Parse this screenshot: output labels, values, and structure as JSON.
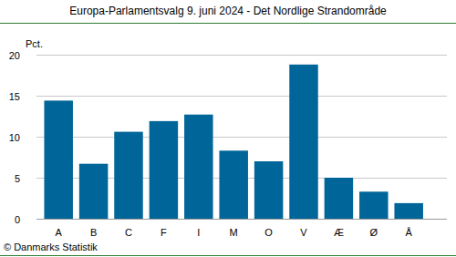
{
  "chart_data": {
    "type": "bar",
    "title": "Europa-Parlamentsvalg 9. juni 2024 - Det Nordlige Strandområde",
    "y_label": "Pct.",
    "source": "© Danmarks Statistik",
    "categories": [
      "A",
      "B",
      "C",
      "F",
      "I",
      "M",
      "O",
      "V",
      "Æ",
      "Ø",
      "Å"
    ],
    "values": [
      14.4,
      6.7,
      10.6,
      11.9,
      12.7,
      8.3,
      7.0,
      18.8,
      5.0,
      3.3,
      1.9
    ],
    "color": "#006699",
    "ylim": [
      0,
      20
    ],
    "yticks": [
      0,
      5,
      10,
      15,
      20
    ],
    "grid": true
  }
}
